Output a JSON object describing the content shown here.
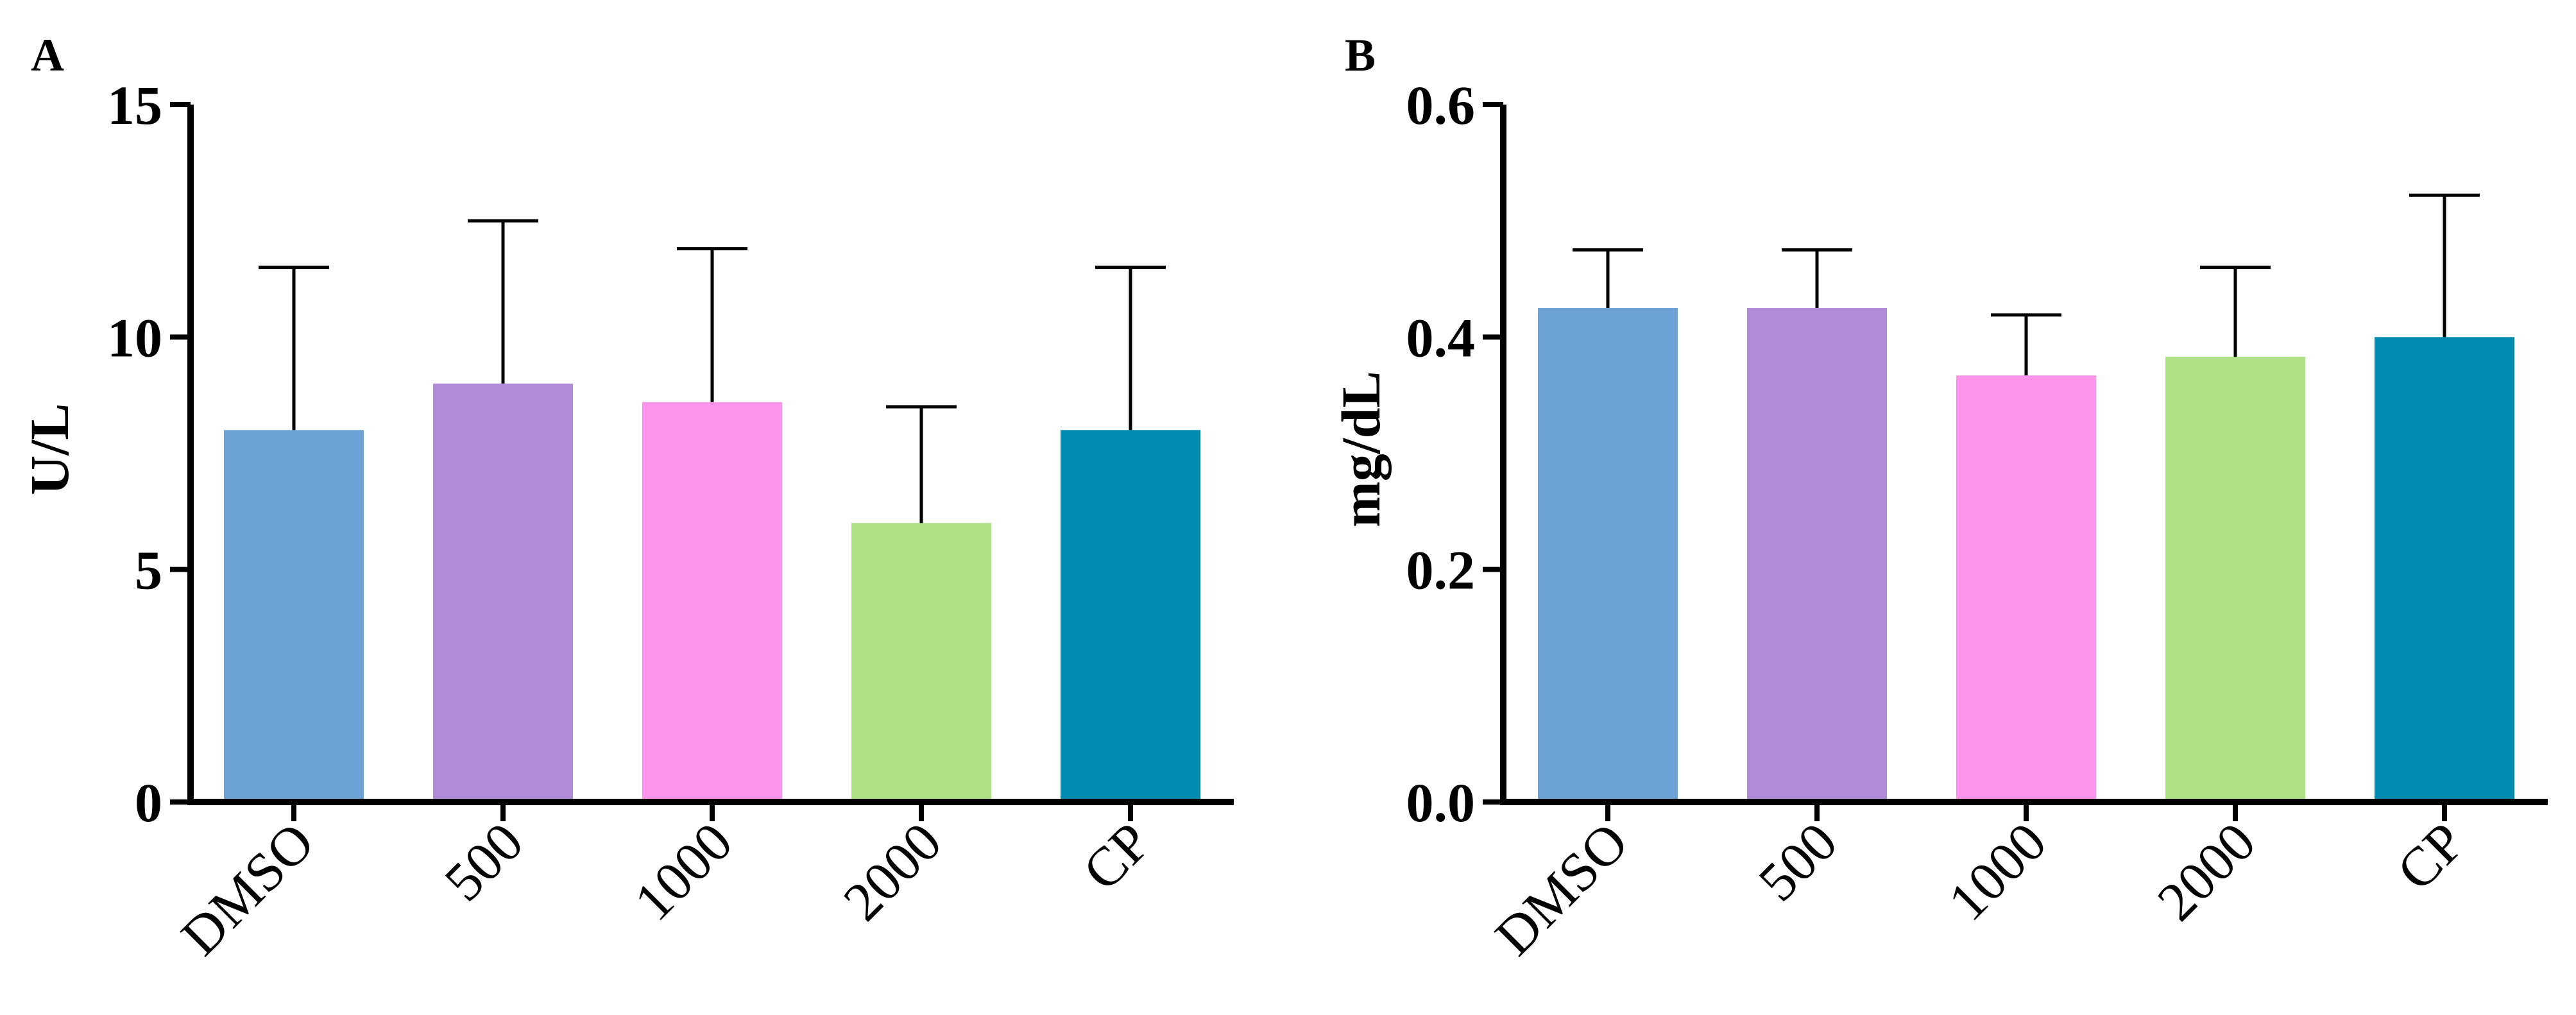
{
  "chart_data": [
    {
      "type": "bar",
      "panel_label": "A",
      "categories": [
        "DMSO",
        "500",
        "1000",
        "2000",
        "CP"
      ],
      "values": [
        8.0,
        9.0,
        8.6,
        6.0,
        8.0
      ],
      "errors": [
        3.5,
        3.5,
        3.3,
        2.5,
        3.5
      ],
      "colors": [
        "#6ca2d6",
        "#b08bd7",
        "#fc94ec",
        "#ade184",
        "#008bb1"
      ],
      "ylabel": "U/L",
      "xlabel": "",
      "ylim": [
        0,
        15
      ],
      "yticks": [
        0,
        5,
        10,
        15
      ],
      "ytick_labels": [
        "0",
        "5",
        "10",
        "15"
      ]
    },
    {
      "type": "bar",
      "panel_label": "B",
      "categories": [
        "DMSO",
        "500",
        "1000",
        "2000",
        "CP"
      ],
      "values": [
        0.425,
        0.425,
        0.367,
        0.383,
        0.4
      ],
      "errors": [
        0.05,
        0.05,
        0.052,
        0.077,
        0.122
      ],
      "colors": [
        "#6ca2d6",
        "#b08bd7",
        "#fc94ec",
        "#ade184",
        "#008bb1"
      ],
      "ylabel": "mg/dL",
      "xlabel": "",
      "ylim": [
        0,
        0.6
      ],
      "yticks": [
        0,
        0.2,
        0.4,
        0.6
      ],
      "ytick_labels": [
        "0.0",
        "0.2",
        "0.4",
        "0.6"
      ]
    }
  ]
}
